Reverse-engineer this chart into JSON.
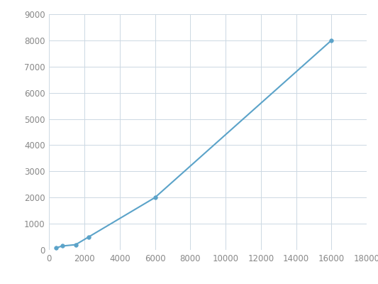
{
  "x": [
    375,
    750,
    1500,
    2250,
    6000,
    16000
  ],
  "y": [
    75,
    150,
    200,
    500,
    2000,
    8000
  ],
  "line_color": "#5ba3c9",
  "marker_color": "#5ba3c9",
  "marker_size": 4,
  "line_width": 1.5,
  "xlim": [
    0,
    18000
  ],
  "ylim": [
    0,
    9000
  ],
  "xticks": [
    0,
    2000,
    4000,
    6000,
    8000,
    10000,
    12000,
    14000,
    16000,
    18000
  ],
  "yticks": [
    0,
    1000,
    2000,
    3000,
    4000,
    5000,
    6000,
    7000,
    8000,
    9000
  ],
  "grid_color": "#ccd8e3",
  "background_color": "#ffffff",
  "tick_fontsize": 8.5,
  "tick_color": "#888888"
}
